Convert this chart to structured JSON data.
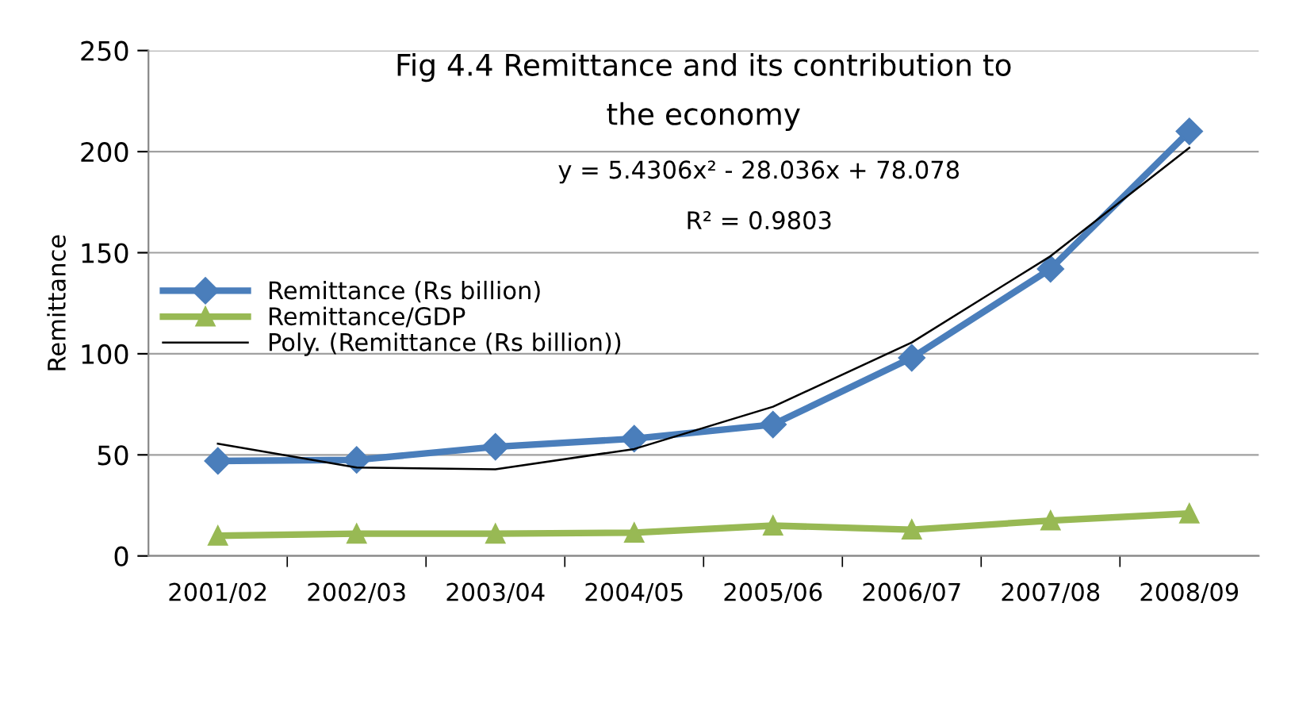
{
  "chart_data": {
    "type": "line",
    "title": "Fig 4.4 Remittance and its contribution to the economy",
    "ylabel": "Remittance",
    "categories": [
      "2001/02",
      "2002/03",
      "2003/04",
      "2004/05",
      "2005/06",
      "2006/07",
      "2007/08",
      "2008/09"
    ],
    "series": [
      {
        "name": "Remittance (Rs billion)",
        "color": "#4a7ebb",
        "marker": "diamond",
        "values": [
          47,
          47.5,
          54,
          58,
          65,
          98,
          142,
          210
        ]
      },
      {
        "name": "Remittance/GDP",
        "color": "#98b954",
        "marker": "triangle",
        "values": [
          10,
          11,
          11,
          11.5,
          15,
          13,
          17.5,
          21
        ]
      },
      {
        "name": "Poly. (Remittance (Rs billion))",
        "color": "#000000",
        "marker": "none",
        "x": [
          "2001/02",
          "2002/03",
          "2003/04",
          "2004/05",
          "2005/06",
          "2006/07",
          "2007/08",
          "2008/09"
        ],
        "values": [
          55.5,
          43.7,
          42.9,
          52.9,
          73.8,
          105.6,
          148.3,
          201.9
        ]
      }
    ],
    "annotations": [
      "y = 5.4306x² - 28.036x + 78.078",
      "R² = 0.9803"
    ],
    "ylim": [
      0,
      250
    ],
    "yticks": [
      0,
      50,
      100,
      150,
      200,
      250
    ],
    "grid": "y",
    "legend": "left"
  }
}
